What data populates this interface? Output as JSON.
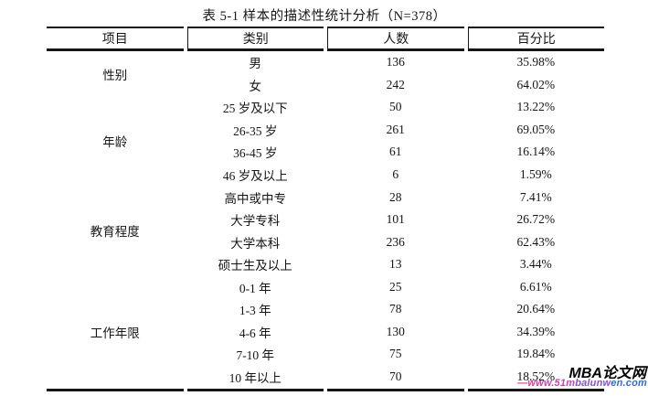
{
  "title": "表 5-1 样本的描述性统计分析（N=378）",
  "table": {
    "headers": [
      "项目",
      "类别",
      "人数",
      "百分比"
    ],
    "groups": [
      {
        "label": "性别",
        "rows": [
          [
            "男",
            "136",
            "35.98%"
          ],
          [
            "女",
            "242",
            "64.02%"
          ]
        ]
      },
      {
        "label": "年龄",
        "rows": [
          [
            "25 岁及以下",
            "50",
            "13.22%"
          ],
          [
            "26-35 岁",
            "261",
            "69.05%"
          ],
          [
            "36-45 岁",
            "61",
            "16.14%"
          ],
          [
            "46 岁及以上",
            "6",
            "1.59%"
          ]
        ]
      },
      {
        "label": "教育程度",
        "rows": [
          [
            "高中或中专",
            "28",
            "7.41%"
          ],
          [
            "大学专科",
            "101",
            "26.72%"
          ],
          [
            "大学本科",
            "236",
            "62.43%"
          ],
          [
            "硕士生及以上",
            "13",
            "3.44%"
          ]
        ]
      },
      {
        "label": "工作年限",
        "rows": [
          [
            "0-1 年",
            "25",
            "6.61%"
          ],
          [
            "1-3 年",
            "78",
            "20.64%"
          ],
          [
            "4-6 年",
            "130",
            "34.39%"
          ],
          [
            "7-10 年",
            "75",
            "19.84%"
          ],
          [
            "10 年以上",
            "70",
            "18.52%"
          ]
        ]
      }
    ]
  },
  "watermark": {
    "logo": "MBA论文网",
    "url": "—www.51mbalunwen.com",
    "url_segments": [
      {
        "text": "—ww",
        "color": "#e8389f"
      },
      {
        "text": "w.51m",
        "color": "#c643b8"
      },
      {
        "text": "balunw",
        "color": "#8a4ed2"
      },
      {
        "text": "en.com",
        "color": "#2f6bdc"
      }
    ]
  }
}
